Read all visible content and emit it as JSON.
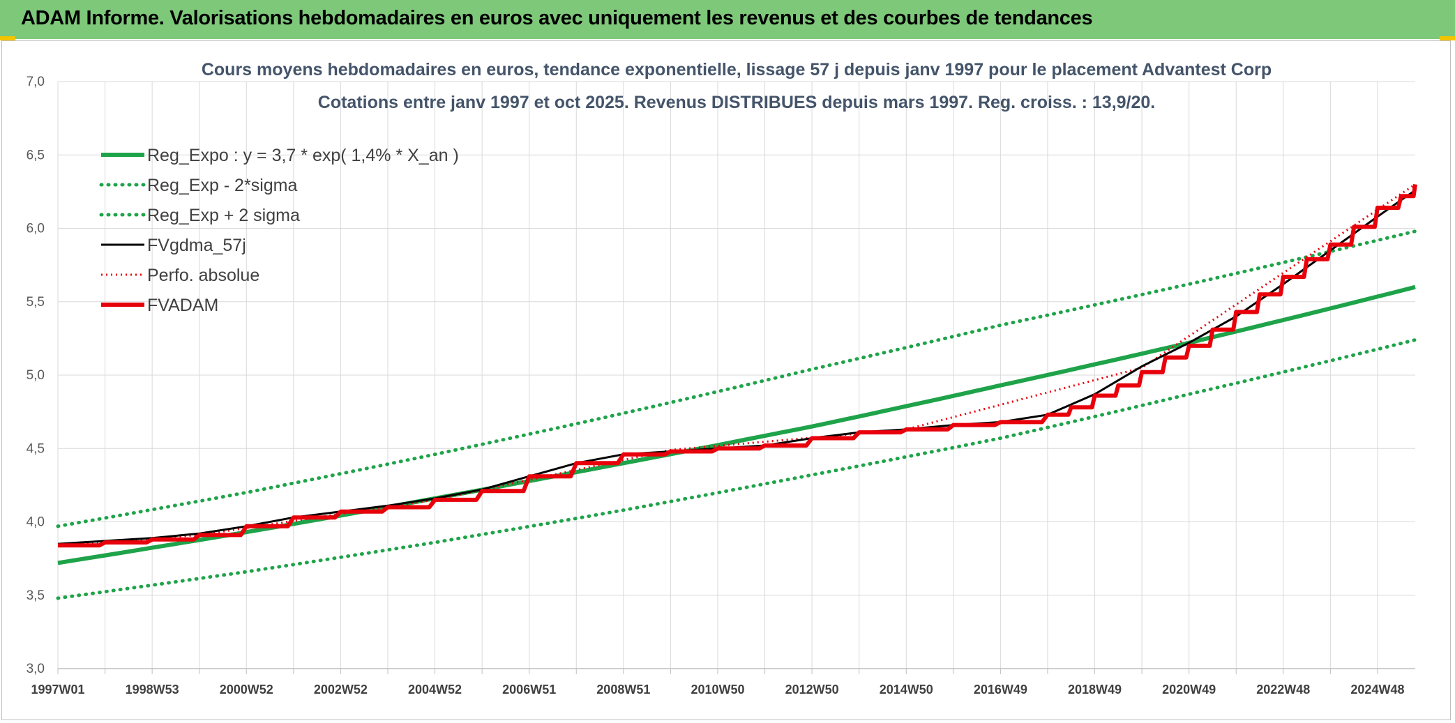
{
  "banner": {
    "title": "ADAM Informe. Valorisations hebdomadaires en euros avec uniquement les revenus et des courbes de tendances"
  },
  "colors": {
    "banner_bg": "#7ec87a",
    "accent_corner": "#f5c400",
    "trend_green": "#1fa34a",
    "price_red": "#e8000b",
    "smooth_black": "#000000",
    "grid": "#d9d9d9",
    "title_text": "#44546a"
  },
  "chart_data": {
    "type": "line",
    "title": "Cours moyens hebdomadaires en euros, tendance exponentielle, lissage 57 j depuis janv 1997 pour le placement Advantest Corp",
    "subtitle": "Cotations entre janv 1997 et oct 2025. Revenus DISTRIBUES depuis mars 1997. Reg. croiss. : 13,9/20.",
    "xlabel": "",
    "ylabel": "",
    "ylim": [
      3.0,
      7.0
    ],
    "yticks": [
      "3,0",
      "3,5",
      "4,0",
      "4,5",
      "5,0",
      "5,5",
      "6,0",
      "6,5",
      "7,0"
    ],
    "xlim": [
      1997.0,
      2025.8
    ],
    "xticks": [
      {
        "label": "1997W01",
        "x": 1997.0
      },
      {
        "label": "1998W53",
        "x": 1999.0
      },
      {
        "label": "2000W52",
        "x": 2001.0
      },
      {
        "label": "2002W52",
        "x": 2003.0
      },
      {
        "label": "2004W52",
        "x": 2005.0
      },
      {
        "label": "2006W51",
        "x": 2007.0
      },
      {
        "label": "2008W51",
        "x": 2009.0
      },
      {
        "label": "2010W50",
        "x": 2011.0
      },
      {
        "label": "2012W50",
        "x": 2013.0
      },
      {
        "label": "2014W50",
        "x": 2015.0
      },
      {
        "label": "2016W49",
        "x": 2017.0
      },
      {
        "label": "2018W49",
        "x": 2019.0
      },
      {
        "label": "2020W49",
        "x": 2021.0
      },
      {
        "label": "2022W48",
        "x": 2023.0
      },
      {
        "label": "2024W48",
        "x": 2025.0
      }
    ],
    "grid": true,
    "legend_position": "top-left",
    "series": [
      {
        "name": "Reg_Expo : y = 3,7 * exp( 1,4% *  X_an )",
        "style": "solid-green",
        "x": [
          1997.0,
          2001.0,
          2005.0,
          2009.0,
          2013.0,
          2017.0,
          2021.0,
          2025.8
        ],
        "y": [
          3.72,
          3.93,
          4.16,
          4.4,
          4.65,
          4.93,
          5.22,
          5.6
        ]
      },
      {
        "name": "Reg_Exp - 2*sigma",
        "style": "dotted-green",
        "x": [
          1997.0,
          2001.0,
          2005.0,
          2009.0,
          2013.0,
          2017.0,
          2021.0,
          2025.8
        ],
        "y": [
          3.48,
          3.66,
          3.86,
          4.08,
          4.32,
          4.57,
          4.87,
          5.24
        ]
      },
      {
        "name": "Reg_Exp + 2 sigma",
        "style": "dotted-green",
        "x": [
          1997.0,
          2001.0,
          2005.0,
          2009.0,
          2013.0,
          2017.0,
          2021.0,
          2025.8
        ],
        "y": [
          3.97,
          4.2,
          4.46,
          4.74,
          5.04,
          5.34,
          5.62,
          5.98
        ]
      },
      {
        "name": "FVgdma_57j",
        "style": "solid-black",
        "x": [
          1997.0,
          1998.0,
          1999.0,
          2000.0,
          2001.0,
          2002.0,
          2003.0,
          2004.0,
          2005.0,
          2006.0,
          2007.0,
          2008.0,
          2009.0,
          2010.0,
          2011.0,
          2012.0,
          2013.0,
          2014.0,
          2015.0,
          2016.0,
          2017.0,
          2018.0,
          2019.0,
          2020.0,
          2021.0,
          2022.0,
          2023.0,
          2024.0,
          2025.0,
          2025.8
        ],
        "y": [
          3.85,
          3.87,
          3.89,
          3.92,
          3.97,
          4.03,
          4.07,
          4.11,
          4.16,
          4.22,
          4.31,
          4.4,
          4.46,
          4.48,
          4.5,
          4.52,
          4.57,
          4.61,
          4.63,
          4.66,
          4.68,
          4.73,
          4.87,
          5.06,
          5.22,
          5.4,
          5.62,
          5.85,
          6.08,
          6.26
        ]
      },
      {
        "name": "Perfo. absolue",
        "style": "dotted-red",
        "x": [
          1997.0,
          2000.0,
          2005.0,
          2010.0,
          2015.0,
          2020.0,
          2025.8
        ],
        "y": [
          3.84,
          3.91,
          4.15,
          4.49,
          4.63,
          5.05,
          6.3
        ]
      },
      {
        "name": "FVADAM",
        "style": "step-red",
        "x": [
          1997.0,
          1998.0,
          1999.0,
          2000.0,
          2001.0,
          2002.0,
          2003.0,
          2004.0,
          2005.0,
          2006.0,
          2007.0,
          2008.0,
          2009.0,
          2010.0,
          2011.0,
          2012.0,
          2013.0,
          2014.0,
          2015.0,
          2016.0,
          2017.0,
          2018.0,
          2018.5,
          2019.0,
          2019.5,
          2020.0,
          2020.5,
          2021.0,
          2021.5,
          2022.0,
          2022.5,
          2023.0,
          2023.5,
          2024.0,
          2024.5,
          2025.0,
          2025.5,
          2025.8
        ],
        "y": [
          3.84,
          3.86,
          3.88,
          3.91,
          3.97,
          4.03,
          4.07,
          4.1,
          4.15,
          4.21,
          4.31,
          4.4,
          4.46,
          4.48,
          4.5,
          4.52,
          4.57,
          4.61,
          4.63,
          4.66,
          4.68,
          4.73,
          4.78,
          4.86,
          4.93,
          5.02,
          5.12,
          5.2,
          5.31,
          5.43,
          5.55,
          5.67,
          5.79,
          5.89,
          6.01,
          6.14,
          6.22,
          6.3
        ]
      }
    ]
  }
}
